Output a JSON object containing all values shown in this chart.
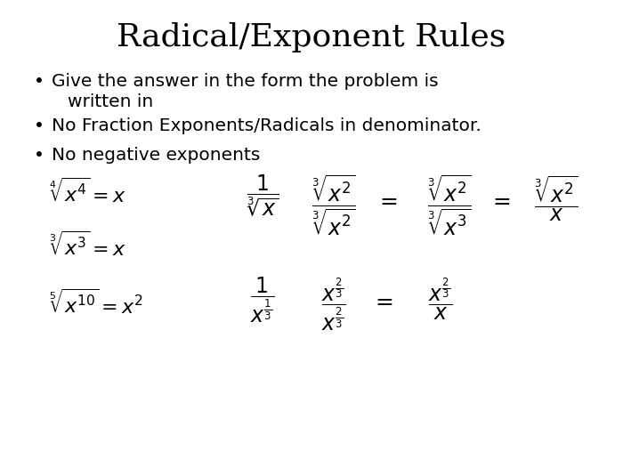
{
  "title": "Radical/Exponent Rules",
  "title_fontsize": 26,
  "background_color": "#ffffff",
  "text_color": "#000000",
  "bullet_points": [
    "Give the answer in the form the problem is\n    written in",
    "No Fraction Exponents/Radicals in denominator.",
    "No negative exponents"
  ],
  "bullet_fontsize": 14.5,
  "math_fontsize": 14
}
